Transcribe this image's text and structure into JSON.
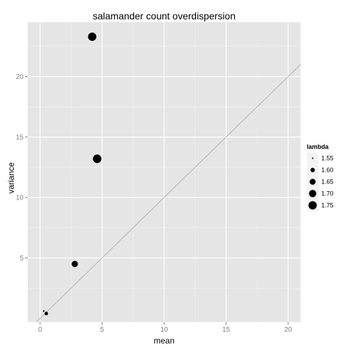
{
  "chart_data": {
    "type": "scatter",
    "title": "salamander count overdispersion",
    "xlabel": "mean",
    "ylabel": "variance",
    "xlim": [
      -1,
      21
    ],
    "ylim": [
      -0.3,
      24.5
    ],
    "x_ticks": [
      0,
      5,
      10,
      15,
      20
    ],
    "y_ticks": [
      5,
      10,
      15,
      20
    ],
    "x_tick_labels": [
      "0",
      "5",
      "10",
      "15",
      "20"
    ],
    "y_tick_labels": [
      "5",
      "10",
      "15",
      "20"
    ],
    "grid": true,
    "reference_line": {
      "slope": 1,
      "intercept": 0,
      "color": "#b3b3b3"
    },
    "points": [
      {
        "mean": 0.3,
        "variance": 0.6,
        "lambda": 1.55
      },
      {
        "mean": 0.5,
        "variance": 0.4,
        "lambda": 1.58
      },
      {
        "mean": 2.8,
        "variance": 4.5,
        "lambda": 1.66
      },
      {
        "mean": 4.2,
        "variance": 23.3,
        "lambda": 1.75
      },
      {
        "mean": 4.6,
        "variance": 13.2,
        "lambda": 1.76
      }
    ],
    "legend": {
      "title": "lambda",
      "placement": "right",
      "entries": [
        {
          "label": "1.55",
          "value": 1.55
        },
        {
          "label": "1.60",
          "value": 1.6
        },
        {
          "label": "1.65",
          "value": 1.65
        },
        {
          "label": "1.70",
          "value": 1.7
        },
        {
          "label": "1.75",
          "value": 1.75
        }
      ]
    },
    "colors": {
      "panel": "#e5e5e5",
      "grid_major": "#ffffff",
      "grid_minor": "#f2f2f2",
      "point": "#000000",
      "legend_key": "#f2f2f2"
    }
  }
}
